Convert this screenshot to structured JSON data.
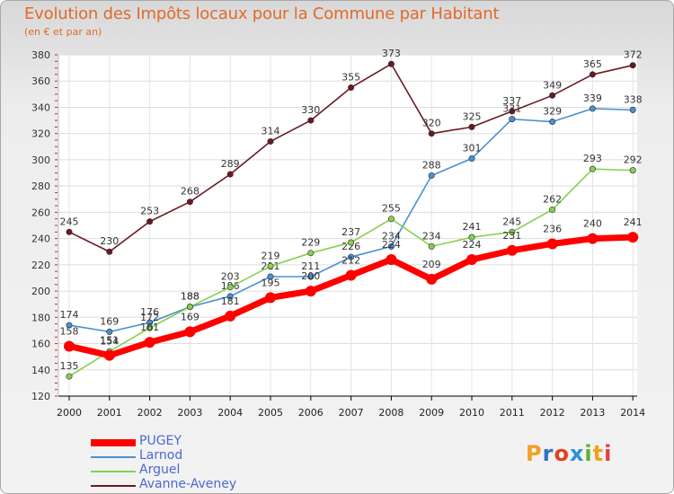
{
  "title": "Evolution des Impôts locaux pour la Commune par Habitant",
  "subtitle": "(en € et par an)",
  "logo": {
    "letters": [
      "P",
      "r",
      "o",
      "x",
      "i",
      "t",
      "i"
    ],
    "colors": [
      "#f0a020",
      "#3070c8",
      "#e04020",
      "#2c90d8",
      "#60b030",
      "#f0a020",
      "#e04040"
    ]
  },
  "chart_data": {
    "type": "line",
    "x": [
      2000,
      2001,
      2002,
      2003,
      2004,
      2005,
      2006,
      2007,
      2008,
      2009,
      2010,
      2011,
      2012,
      2013,
      2014
    ],
    "ylim": [
      120,
      380
    ],
    "yticks": [
      120,
      140,
      160,
      180,
      200,
      220,
      240,
      260,
      280,
      300,
      320,
      340,
      360,
      380
    ],
    "grid": true,
    "legend_position": "bottom-left",
    "series": [
      {
        "name": "Avanne-Aveney",
        "color": "#6b1a22",
        "values": [
          245,
          230,
          253,
          268,
          289,
          314,
          330,
          355,
          373,
          320,
          325,
          337,
          349,
          365,
          372
        ],
        "labels": [
          "245",
          "230",
          "253",
          "268",
          "289",
          "314",
          "330",
          "355",
          "373",
          "320",
          "325",
          "337",
          "349",
          "365",
          "372"
        ]
      },
      {
        "name": "Larnod",
        "color": "#4a90d0",
        "values": [
          174,
          169,
          176,
          188,
          196,
          211,
          211,
          226,
          234,
          288,
          301,
          331,
          329,
          339,
          338
        ],
        "labels": [
          "174",
          "169",
          "176",
          "188",
          "196",
          "211",
          "211",
          "226",
          "234",
          "288",
          "301",
          "331",
          "329",
          "339",
          "338"
        ]
      },
      {
        "name": "Arguel",
        "color": "#86d050",
        "values": [
          135,
          154,
          172,
          188,
          203,
          219,
          229,
          237,
          255,
          234,
          241,
          245,
          262,
          293,
          292
        ],
        "labels": [
          "135",
          "154",
          "172",
          "188",
          "203",
          "219",
          "229",
          "237",
          "255",
          "234",
          "241",
          "245",
          "262",
          "293",
          "292"
        ]
      },
      {
        "name": "PUGEY",
        "color": "#ff0000",
        "values": [
          158,
          151,
          161,
          169,
          181,
          195,
          200,
          212,
          224,
          209,
          224,
          231,
          236,
          240,
          241
        ],
        "labels": [
          "158",
          "151",
          "161",
          "169",
          "181",
          "195",
          "200",
          "212",
          "224",
          "209",
          "224",
          "231",
          "236",
          "240",
          "241"
        ]
      }
    ],
    "legend": [
      {
        "name": "PUGEY",
        "color": "#ff0000",
        "thickness": 8
      },
      {
        "name": "Larnod",
        "color": "#4a90d0",
        "thickness": 2
      },
      {
        "name": "Arguel",
        "color": "#86d050",
        "thickness": 2
      },
      {
        "name": "Avanne-Aveney",
        "color": "#6b1a22",
        "thickness": 2
      }
    ]
  }
}
